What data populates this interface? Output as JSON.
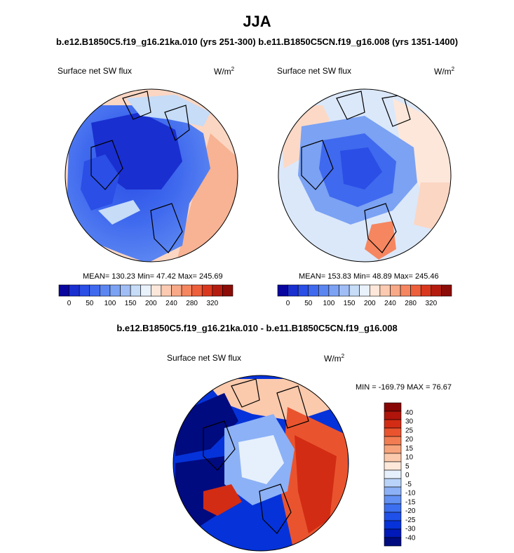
{
  "header": {
    "season": "JJA",
    "cases": "b.e12.B1850C5.f19_g16.21ka.010 (yrs 251-300) b.e11.B1850C5CN.f19_g16.008 (yrs 1351-1400)",
    "diff_title": "b.e12.B1850C5.f19_g16.21ka.010 - b.e11.B1850C5CN.f19_g16.008"
  },
  "panels": [
    {
      "variable": "Surface net SW flux",
      "unit": "W/m",
      "unit_exp": "2",
      "stats": "MEAN= 130.23  Min=  47.42  Max= 245.69"
    },
    {
      "variable": "Surface net SW flux",
      "unit": "W/m",
      "unit_exp": "2",
      "stats": "MEAN= 153.83  Min=  48.89  Max= 245.46"
    }
  ],
  "diff_panel": {
    "variable": "Surface net SW flux",
    "unit": "W/m",
    "unit_exp": "2",
    "stats": "MIN = -169.79 MAX =  76.67"
  },
  "colorbar_top": {
    "colors": [
      "#08069e",
      "#1a2fd0",
      "#2a4ee6",
      "#3f69ee",
      "#5b86f1",
      "#7ba2f3",
      "#a0bef5",
      "#c6dcf7",
      "#e9f1fb",
      "#fde7da",
      "#fbcab0",
      "#f8a987",
      "#f58660",
      "#ee5f3c",
      "#d9381f",
      "#b51c10",
      "#8c0c07"
    ],
    "tick_labels": [
      "0",
      "50",
      "100",
      "150",
      "200",
      "240",
      "280",
      "320"
    ]
  },
  "colorbar_diff": {
    "colors": [
      "#000b80",
      "#0019b8",
      "#0533d9",
      "#1f51ea",
      "#3c6ff0",
      "#6290f3",
      "#8cb1f6",
      "#b9d3f9",
      "#e6f0fc",
      "#fde8da",
      "#fbc9ac",
      "#f7a47c",
      "#f27d52",
      "#e9542f",
      "#d32c14",
      "#b0140a",
      "#870605"
    ],
    "tick_labels": [
      "40",
      "30",
      "25",
      "20",
      "15",
      "10",
      "5",
      "0",
      "-5",
      "-10",
      "-15",
      "-20",
      "-25",
      "-30",
      "-40"
    ]
  }
}
